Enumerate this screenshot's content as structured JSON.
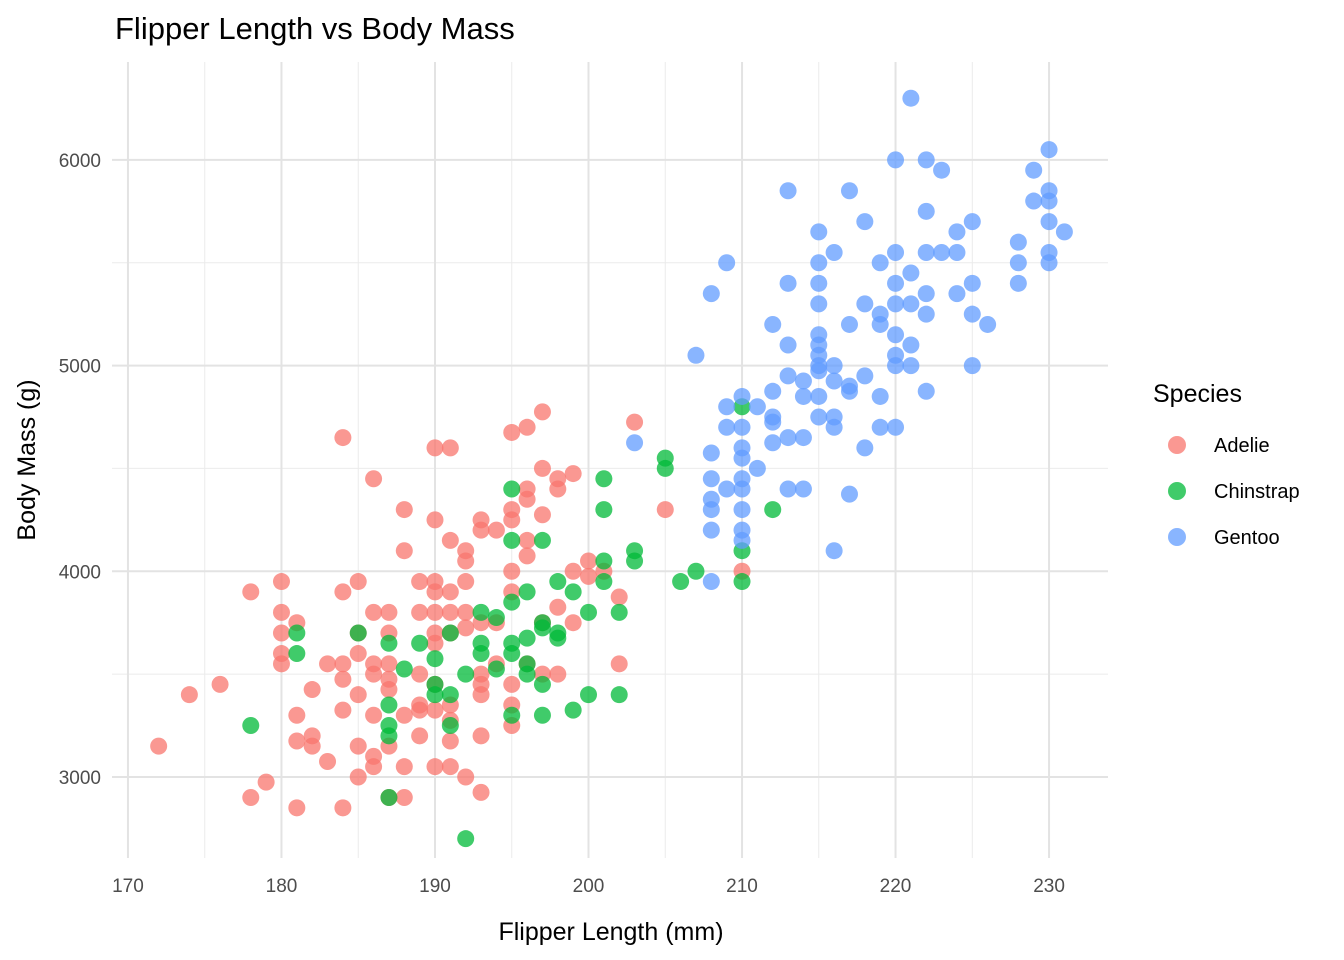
{
  "chart_data": {
    "type": "scatter",
    "title": "Flipper Length vs Body Mass",
    "xlabel": "Flipper Length (mm)",
    "ylabel": "Body Mass (g)",
    "xlim": [
      168.96,
      233.84
    ],
    "ylim": [
      2606,
      6476
    ],
    "xticks": [
      170,
      180,
      190,
      200,
      210,
      220,
      230
    ],
    "xtick_labels": [
      "170",
      "180",
      "190",
      "200",
      "210",
      "220",
      "230"
    ],
    "yticks": [
      3000,
      4000,
      5000,
      6000
    ],
    "ytick_labels": [
      "3000",
      "4000",
      "5000",
      "6000"
    ],
    "grid": true,
    "legend": {
      "title": "Species",
      "placement": "right"
    },
    "series": [
      {
        "name": "Adelie",
        "color": "#F8766D",
        "points": [
          [
            172,
            3150
          ],
          [
            174,
            3400
          ],
          [
            176,
            3450
          ],
          [
            178,
            3900
          ],
          [
            178,
            2900
          ],
          [
            179,
            2975
          ],
          [
            180,
            3950
          ],
          [
            180,
            3800
          ],
          [
            180,
            3700
          ],
          [
            180,
            3600
          ],
          [
            180,
            3550
          ],
          [
            181,
            3750
          ],
          [
            181,
            3300
          ],
          [
            181,
            3175
          ],
          [
            181,
            2850
          ],
          [
            182,
            3425
          ],
          [
            182,
            3200
          ],
          [
            182,
            3150
          ],
          [
            183,
            3550
          ],
          [
            183,
            3075
          ],
          [
            184,
            4650
          ],
          [
            184,
            3900
          ],
          [
            184,
            3550
          ],
          [
            184,
            3475
          ],
          [
            184,
            3325
          ],
          [
            184,
            2850
          ],
          [
            185,
            3950
          ],
          [
            185,
            3700
          ],
          [
            185,
            3600
          ],
          [
            185,
            3400
          ],
          [
            185,
            3150
          ],
          [
            185,
            3000
          ],
          [
            186,
            4450
          ],
          [
            186,
            3800
          ],
          [
            186,
            3550
          ],
          [
            186,
            3500
          ],
          [
            186,
            3300
          ],
          [
            186,
            3100
          ],
          [
            186,
            3050
          ],
          [
            187,
            3800
          ],
          [
            187,
            3700
          ],
          [
            187,
            3550
          ],
          [
            187,
            3475
          ],
          [
            187,
            3425
          ],
          [
            187,
            3150
          ],
          [
            187,
            2900
          ],
          [
            188,
            4300
          ],
          [
            188,
            4100
          ],
          [
            188,
            3300
          ],
          [
            188,
            3050
          ],
          [
            188,
            2900
          ],
          [
            189,
            3950
          ],
          [
            189,
            3800
          ],
          [
            189,
            3500
          ],
          [
            189,
            3350
          ],
          [
            189,
            3325
          ],
          [
            189,
            3200
          ],
          [
            190,
            4600
          ],
          [
            190,
            4250
          ],
          [
            190,
            3950
          ],
          [
            190,
            3900
          ],
          [
            190,
            3800
          ],
          [
            190,
            3700
          ],
          [
            190,
            3650
          ],
          [
            190,
            3450
          ],
          [
            190,
            3325
          ],
          [
            190,
            3050
          ],
          [
            191,
            4600
          ],
          [
            191,
            4150
          ],
          [
            191,
            3900
          ],
          [
            191,
            3800
          ],
          [
            191,
            3700
          ],
          [
            191,
            3350
          ],
          [
            191,
            3275
          ],
          [
            191,
            3175
          ],
          [
            191,
            3050
          ],
          [
            192,
            4100
          ],
          [
            192,
            4050
          ],
          [
            192,
            3950
          ],
          [
            192,
            3800
          ],
          [
            192,
            3725
          ],
          [
            192,
            3000
          ],
          [
            193,
            4250
          ],
          [
            193,
            4200
          ],
          [
            193,
            3750
          ],
          [
            193,
            3500
          ],
          [
            193,
            3450
          ],
          [
            193,
            3400
          ],
          [
            193,
            3200
          ],
          [
            193,
            2925
          ],
          [
            194,
            4200
          ],
          [
            194,
            3750
          ],
          [
            194,
            3550
          ],
          [
            195,
            4675
          ],
          [
            195,
            4300
          ],
          [
            195,
            4250
          ],
          [
            195,
            4000
          ],
          [
            195,
            3900
          ],
          [
            195,
            3450
          ],
          [
            195,
            3350
          ],
          [
            195,
            3250
          ],
          [
            196,
            4700
          ],
          [
            196,
            4400
          ],
          [
            196,
            4350
          ],
          [
            196,
            4150
          ],
          [
            196,
            4075
          ],
          [
            196,
            3550
          ],
          [
            197,
            4775
          ],
          [
            197,
            4500
          ],
          [
            197,
            4275
          ],
          [
            197,
            3750
          ],
          [
            197,
            3500
          ],
          [
            198,
            4450
          ],
          [
            198,
            4400
          ],
          [
            198,
            3825
          ],
          [
            198,
            3500
          ],
          [
            199,
            4475
          ],
          [
            199,
            4000
          ],
          [
            199,
            3750
          ],
          [
            200,
            4050
          ],
          [
            200,
            3975
          ],
          [
            201,
            4000
          ],
          [
            202,
            3875
          ],
          [
            202,
            3550
          ],
          [
            203,
            4725
          ],
          [
            205,
            4300
          ],
          [
            210,
            4000
          ]
        ]
      },
      {
        "name": "Chinstrap",
        "color": "#00BA38",
        "points": [
          [
            178,
            3250
          ],
          [
            181,
            3700
          ],
          [
            181,
            3600
          ],
          [
            185,
            3700
          ],
          [
            187,
            3650
          ],
          [
            187,
            3350
          ],
          [
            187,
            3250
          ],
          [
            187,
            3200
          ],
          [
            187,
            2900
          ],
          [
            188,
            3525
          ],
          [
            189,
            3650
          ],
          [
            190,
            3575
          ],
          [
            190,
            3450
          ],
          [
            190,
            3400
          ],
          [
            191,
            3700
          ],
          [
            191,
            3400
          ],
          [
            191,
            3250
          ],
          [
            192,
            3500
          ],
          [
            192,
            2700
          ],
          [
            193,
            3800
          ],
          [
            193,
            3650
          ],
          [
            193,
            3600
          ],
          [
            194,
            3775
          ],
          [
            194,
            3525
          ],
          [
            195,
            4400
          ],
          [
            195,
            4150
          ],
          [
            195,
            3850
          ],
          [
            195,
            3650
          ],
          [
            195,
            3600
          ],
          [
            195,
            3300
          ],
          [
            196,
            3900
          ],
          [
            196,
            3675
          ],
          [
            196,
            3550
          ],
          [
            196,
            3500
          ],
          [
            197,
            4150
          ],
          [
            197,
            3750
          ],
          [
            197,
            3725
          ],
          [
            197,
            3450
          ],
          [
            197,
            3300
          ],
          [
            198,
            3950
          ],
          [
            198,
            3700
          ],
          [
            198,
            3675
          ],
          [
            199,
            3900
          ],
          [
            199,
            3325
          ],
          [
            200,
            3800
          ],
          [
            200,
            3400
          ],
          [
            201,
            4450
          ],
          [
            201,
            4300
          ],
          [
            201,
            4050
          ],
          [
            201,
            3950
          ],
          [
            202,
            3800
          ],
          [
            202,
            3400
          ],
          [
            203,
            4100
          ],
          [
            203,
            4050
          ],
          [
            205,
            4550
          ],
          [
            205,
            4500
          ],
          [
            206,
            3950
          ],
          [
            207,
            4000
          ],
          [
            210,
            4800
          ],
          [
            210,
            4100
          ],
          [
            210,
            3950
          ],
          [
            212,
            4300
          ]
        ]
      },
      {
        "name": "Gentoo",
        "color": "#619CFF",
        "points": [
          [
            203,
            4625
          ],
          [
            207,
            5050
          ],
          [
            208,
            5350
          ],
          [
            208,
            4575
          ],
          [
            208,
            4450
          ],
          [
            208,
            4350
          ],
          [
            208,
            4300
          ],
          [
            208,
            4200
          ],
          [
            208,
            3950
          ],
          [
            209,
            5500
          ],
          [
            209,
            4800
          ],
          [
            209,
            4700
          ],
          [
            209,
            4400
          ],
          [
            210,
            4850
          ],
          [
            210,
            4700
          ],
          [
            210,
            4600
          ],
          [
            210,
            4550
          ],
          [
            210,
            4450
          ],
          [
            210,
            4400
          ],
          [
            210,
            4300
          ],
          [
            210,
            4200
          ],
          [
            210,
            4150
          ],
          [
            211,
            4800
          ],
          [
            211,
            4500
          ],
          [
            212,
            5200
          ],
          [
            212,
            4875
          ],
          [
            212,
            4750
          ],
          [
            212,
            4725
          ],
          [
            212,
            4625
          ],
          [
            213,
            5850
          ],
          [
            213,
            5400
          ],
          [
            213,
            5100
          ],
          [
            213,
            4950
          ],
          [
            213,
            4650
          ],
          [
            213,
            4400
          ],
          [
            214,
            4925
          ],
          [
            214,
            4850
          ],
          [
            214,
            4650
          ],
          [
            214,
            4400
          ],
          [
            215,
            5650
          ],
          [
            215,
            5500
          ],
          [
            215,
            5400
          ],
          [
            215,
            5300
          ],
          [
            215,
            5150
          ],
          [
            215,
            5100
          ],
          [
            215,
            5050
          ],
          [
            215,
            5000
          ],
          [
            215,
            4975
          ],
          [
            215,
            4850
          ],
          [
            215,
            4750
          ],
          [
            216,
            5550
          ],
          [
            216,
            5000
          ],
          [
            216,
            4925
          ],
          [
            216,
            4750
          ],
          [
            216,
            4700
          ],
          [
            216,
            4100
          ],
          [
            217,
            5850
          ],
          [
            217,
            5200
          ],
          [
            217,
            4900
          ],
          [
            217,
            4875
          ],
          [
            217,
            4375
          ],
          [
            218,
            5700
          ],
          [
            218,
            5300
          ],
          [
            218,
            4950
          ],
          [
            218,
            4600
          ],
          [
            219,
            5500
          ],
          [
            219,
            5250
          ],
          [
            219,
            5200
          ],
          [
            219,
            4850
          ],
          [
            219,
            4700
          ],
          [
            220,
            6000
          ],
          [
            220,
            5550
          ],
          [
            220,
            5400
          ],
          [
            220,
            5300
          ],
          [
            220,
            5150
          ],
          [
            220,
            5050
          ],
          [
            220,
            5000
          ],
          [
            220,
            4700
          ],
          [
            221,
            6300
          ],
          [
            221,
            5450
          ],
          [
            221,
            5300
          ],
          [
            221,
            5100
          ],
          [
            221,
            5000
          ],
          [
            222,
            6000
          ],
          [
            222,
            5750
          ],
          [
            222,
            5550
          ],
          [
            222,
            5350
          ],
          [
            222,
            5250
          ],
          [
            222,
            4875
          ],
          [
            223,
            5950
          ],
          [
            223,
            5550
          ],
          [
            224,
            5650
          ],
          [
            224,
            5550
          ],
          [
            224,
            5350
          ],
          [
            225,
            5700
          ],
          [
            225,
            5400
          ],
          [
            225,
            5250
          ],
          [
            225,
            5000
          ],
          [
            226,
            5200
          ],
          [
            228,
            5600
          ],
          [
            228,
            5500
          ],
          [
            228,
            5400
          ],
          [
            229,
            5950
          ],
          [
            229,
            5800
          ],
          [
            230,
            6050
          ],
          [
            230,
            5850
          ],
          [
            230,
            5800
          ],
          [
            230,
            5700
          ],
          [
            230,
            5550
          ],
          [
            230,
            5500
          ],
          [
            231,
            5650
          ]
        ]
      }
    ]
  }
}
